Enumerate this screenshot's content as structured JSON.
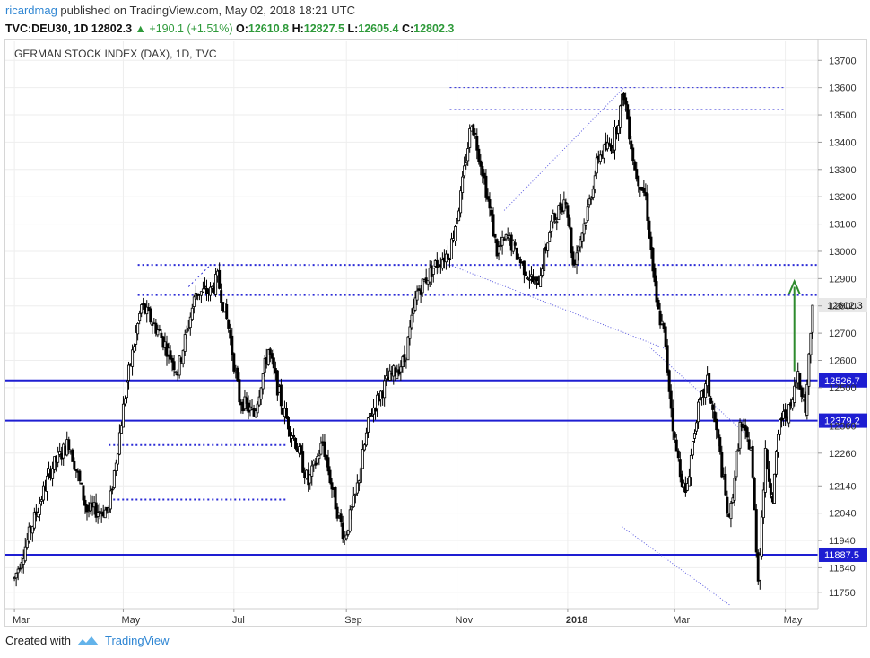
{
  "header": {
    "author": "ricardmag",
    "published_text": "published on TradingView.com, May 02, 2018 18:21 UTC",
    "symbol": "TVC:DEU30, 1D",
    "last": "12802.3",
    "change": "+190.1 (+1.51%)",
    "o_label": "O:",
    "o_value": "12610.8",
    "h_label": "H:",
    "h_value": "12827.5",
    "l_label": "L:",
    "l_value": "12605.4",
    "c_label": "C:",
    "c_value": "12802.3"
  },
  "footer": {
    "created_with": "Created with",
    "brand": "TradingView"
  },
  "colors": {
    "candle": "#000000",
    "level_line": "#1e1ed2",
    "dotted": "#2b2bd6",
    "trend": "#5a5ae0",
    "arrow": "#2e8b2e",
    "grid": "#eeeeee",
    "axis_text": "#333333"
  },
  "chart_data": {
    "type": "candlestick",
    "title": "GERMAN STOCK INDEX (DAX), 1D, TVC",
    "y_ticks": [
      11750,
      11840,
      11940,
      12040,
      12140,
      12260,
      12360,
      12500,
      12600,
      12700,
      12800,
      12900,
      13000,
      13100,
      13200,
      13300,
      13400,
      13500,
      13600,
      13700
    ],
    "ylim": [
      11690,
      13770
    ],
    "x_labels": [
      {
        "label": "Mar",
        "day": 0
      },
      {
        "label": "May",
        "day": 60
      },
      {
        "label": "Jul",
        "day": 121
      },
      {
        "label": "Sep",
        "day": 183
      },
      {
        "label": "Nov",
        "day": 244
      },
      {
        "label": "2018",
        "day": 305
      },
      {
        "label": "Mar",
        "day": 364
      },
      {
        "label": "May",
        "day": 425
      }
    ],
    "xlim": [
      -5,
      443
    ],
    "price_label": "12802.3",
    "horizontal_levels": [
      {
        "value": 12526.7,
        "label": "12526.7"
      },
      {
        "value": 12379.2,
        "label": "12379.2"
      },
      {
        "value": 11887.5,
        "label": "11887.5"
      }
    ],
    "ohlc_series": [
      {
        "day": 0,
        "close": 11800
      },
      {
        "day": 10,
        "close": 12000
      },
      {
        "day": 20,
        "close": 12200
      },
      {
        "day": 30,
        "close": 12300
      },
      {
        "day": 40,
        "close": 12050
      },
      {
        "day": 52,
        "close": 12050
      },
      {
        "day": 62,
        "close": 12520
      },
      {
        "day": 70,
        "close": 12800
      },
      {
        "day": 80,
        "close": 12700
      },
      {
        "day": 90,
        "close": 12560
      },
      {
        "day": 100,
        "close": 12850
      },
      {
        "day": 108,
        "close": 12850
      },
      {
        "day": 112,
        "close": 12900
      },
      {
        "day": 118,
        "close": 12720
      },
      {
        "day": 124,
        "close": 12460
      },
      {
        "day": 132,
        "close": 12400
      },
      {
        "day": 140,
        "close": 12640
      },
      {
        "day": 148,
        "close": 12420
      },
      {
        "day": 155,
        "close": 12300
      },
      {
        "day": 162,
        "close": 12150
      },
      {
        "day": 170,
        "close": 12300
      },
      {
        "day": 176,
        "close": 12100
      },
      {
        "day": 182,
        "close": 11950
      },
      {
        "day": 188,
        "close": 12100
      },
      {
        "day": 196,
        "close": 12400
      },
      {
        "day": 205,
        "close": 12520
      },
      {
        "day": 215,
        "close": 12600
      },
      {
        "day": 222,
        "close": 12850
      },
      {
        "day": 232,
        "close": 12950
      },
      {
        "day": 240,
        "close": 13000
      },
      {
        "day": 246,
        "close": 13200
      },
      {
        "day": 252,
        "close": 13480
      },
      {
        "day": 258,
        "close": 13300
      },
      {
        "day": 266,
        "close": 13000
      },
      {
        "day": 272,
        "close": 13050
      },
      {
        "day": 280,
        "close": 12950
      },
      {
        "day": 288,
        "close": 12870
      },
      {
        "day": 296,
        "close": 13100
      },
      {
        "day": 304,
        "close": 13200
      },
      {
        "day": 308,
        "close": 12950
      },
      {
        "day": 316,
        "close": 13150
      },
      {
        "day": 322,
        "close": 13350
      },
      {
        "day": 330,
        "close": 13400
      },
      {
        "day": 336,
        "close": 13580
      },
      {
        "day": 342,
        "close": 13300
      },
      {
        "day": 348,
        "close": 13200
      },
      {
        "day": 354,
        "close": 12800
      },
      {
        "day": 358,
        "close": 12700
      },
      {
        "day": 364,
        "close": 12300
      },
      {
        "day": 370,
        "close": 12100
      },
      {
        "day": 376,
        "close": 12400
      },
      {
        "day": 382,
        "close": 12520
      },
      {
        "day": 388,
        "close": 12300
      },
      {
        "day": 394,
        "close": 12000
      },
      {
        "day": 400,
        "close": 12360
      },
      {
        "day": 406,
        "close": 12280
      },
      {
        "day": 410,
        "close": 11800
      },
      {
        "day": 414,
        "close": 12250
      },
      {
        "day": 418,
        "close": 12100
      },
      {
        "day": 422,
        "close": 12380
      },
      {
        "day": 428,
        "close": 12420
      },
      {
        "day": 432,
        "close": 12560
      },
      {
        "day": 436,
        "close": 12420
      },
      {
        "day": 440,
        "close": 12802
      }
    ]
  }
}
